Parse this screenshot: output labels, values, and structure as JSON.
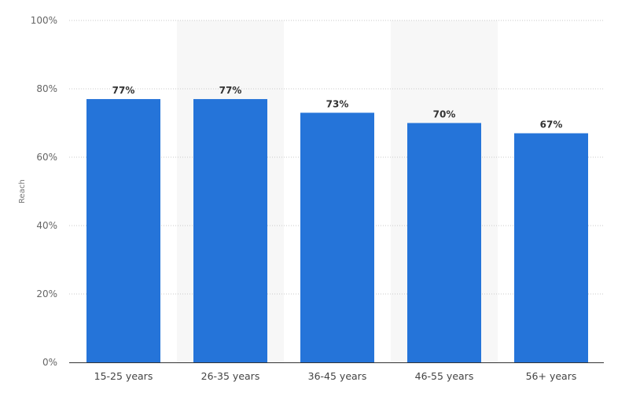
{
  "chart_data": {
    "type": "bar",
    "categories": [
      "15-25 years",
      "26-35 years",
      "36-45 years",
      "46-55 years",
      "56+ years"
    ],
    "values": [
      77,
      77,
      73,
      70,
      67
    ],
    "value_labels": [
      "77%",
      "77%",
      "73%",
      "70%",
      "67%"
    ],
    "title": "",
    "xlabel": "",
    "ylabel": "Reach",
    "ylim": [
      0,
      100
    ],
    "yticks": [
      0,
      20,
      40,
      60,
      80,
      100
    ],
    "ytick_labels": [
      "0%",
      "20%",
      "40%",
      "60%",
      "80%",
      "100%"
    ],
    "grid": true,
    "bar_color": "#2574d9",
    "alt_band_color": "#f7f7f7"
  }
}
